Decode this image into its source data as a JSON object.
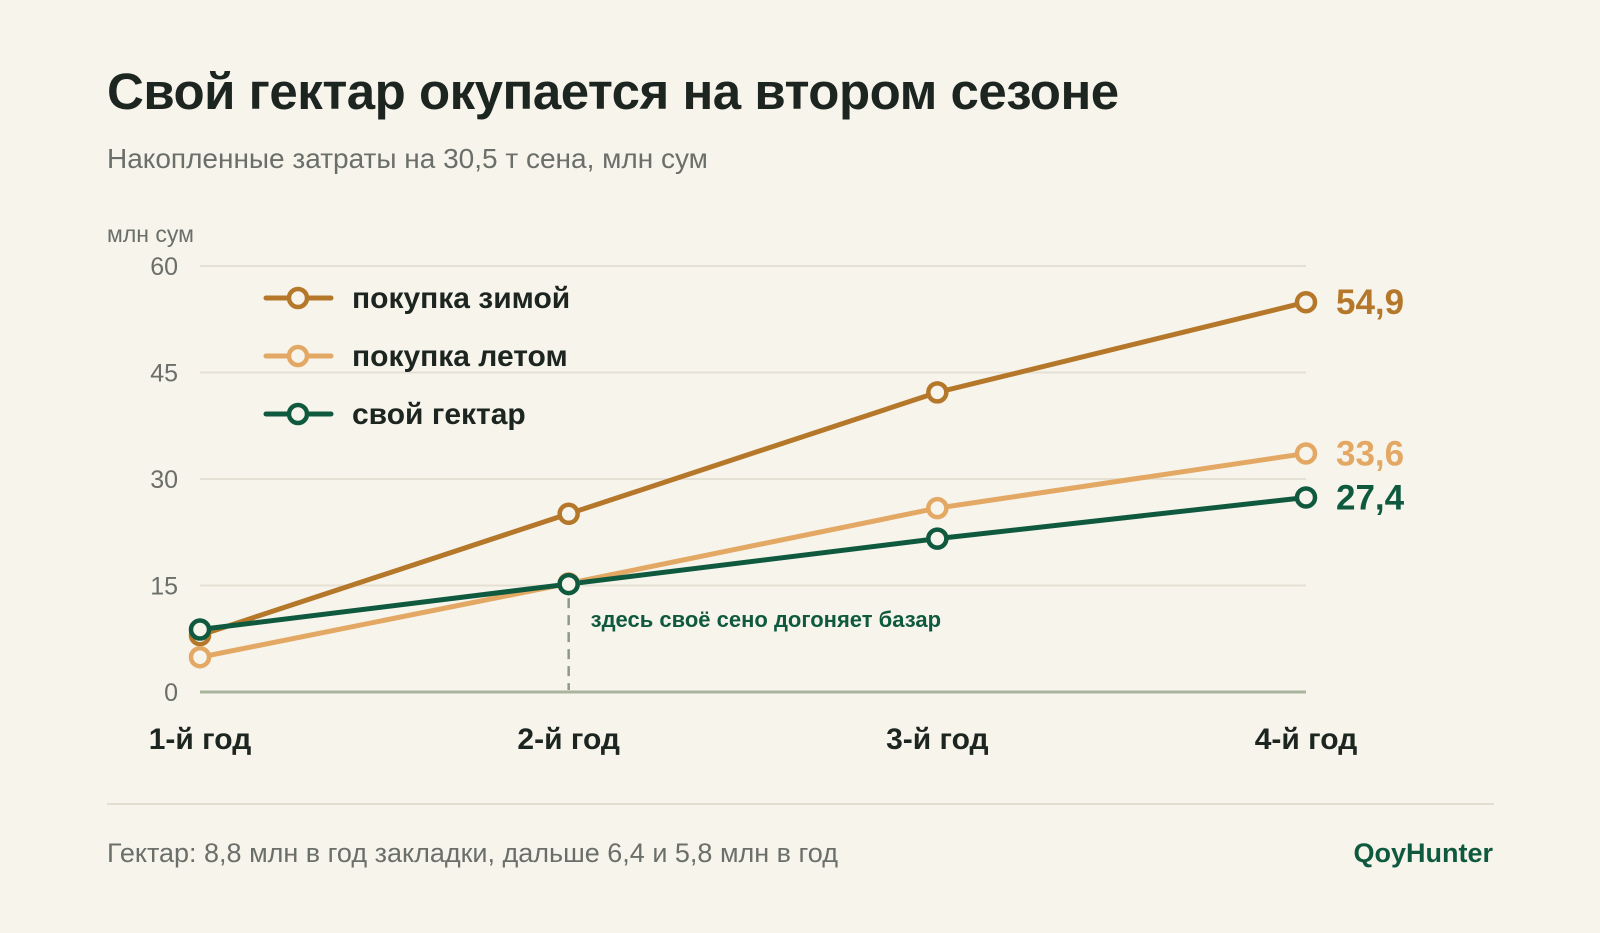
{
  "header": {
    "title": "Свой гектар окупается на втором сезоне",
    "subtitle": "Накопленные затраты на 30,5 т сена, млн сум"
  },
  "chart_data": {
    "type": "line",
    "title": "Свой гектар окупается на втором сезоне",
    "subtitle": "Накопленные затраты на 30,5 т сена, млн сум",
    "ylabel": "млн сум",
    "xlabel": "",
    "categories": [
      "1-й год",
      "2-й год",
      "3-й год",
      "4-й год"
    ],
    "ylim": [
      0,
      60
    ],
    "yticks": [
      0,
      15,
      30,
      45,
      60
    ],
    "grid": true,
    "legend_position": "top-left",
    "series": [
      {
        "name": "покупка зимой",
        "color": "#b5782a",
        "values": [
          8.0,
          25.1,
          42.2,
          54.9
        ],
        "end_label": "54,9"
      },
      {
        "name": "покупка летом",
        "color": "#e3a864",
        "values": [
          4.9,
          15.3,
          25.9,
          33.6
        ],
        "end_label": "33,6"
      },
      {
        "name": "свой гектар",
        "color": "#0f5a3f",
        "values": [
          8.8,
          15.2,
          21.6,
          27.4
        ],
        "end_label": "27,4"
      }
    ],
    "annotation": {
      "text": "здесь своё сено догоняет базар",
      "x_index": 1
    }
  },
  "footer": {
    "note": "Гектар: 8,8 млн в год закладки, дальше 6,4 и 5,8 млн в год",
    "brand": "QoyHunter"
  }
}
